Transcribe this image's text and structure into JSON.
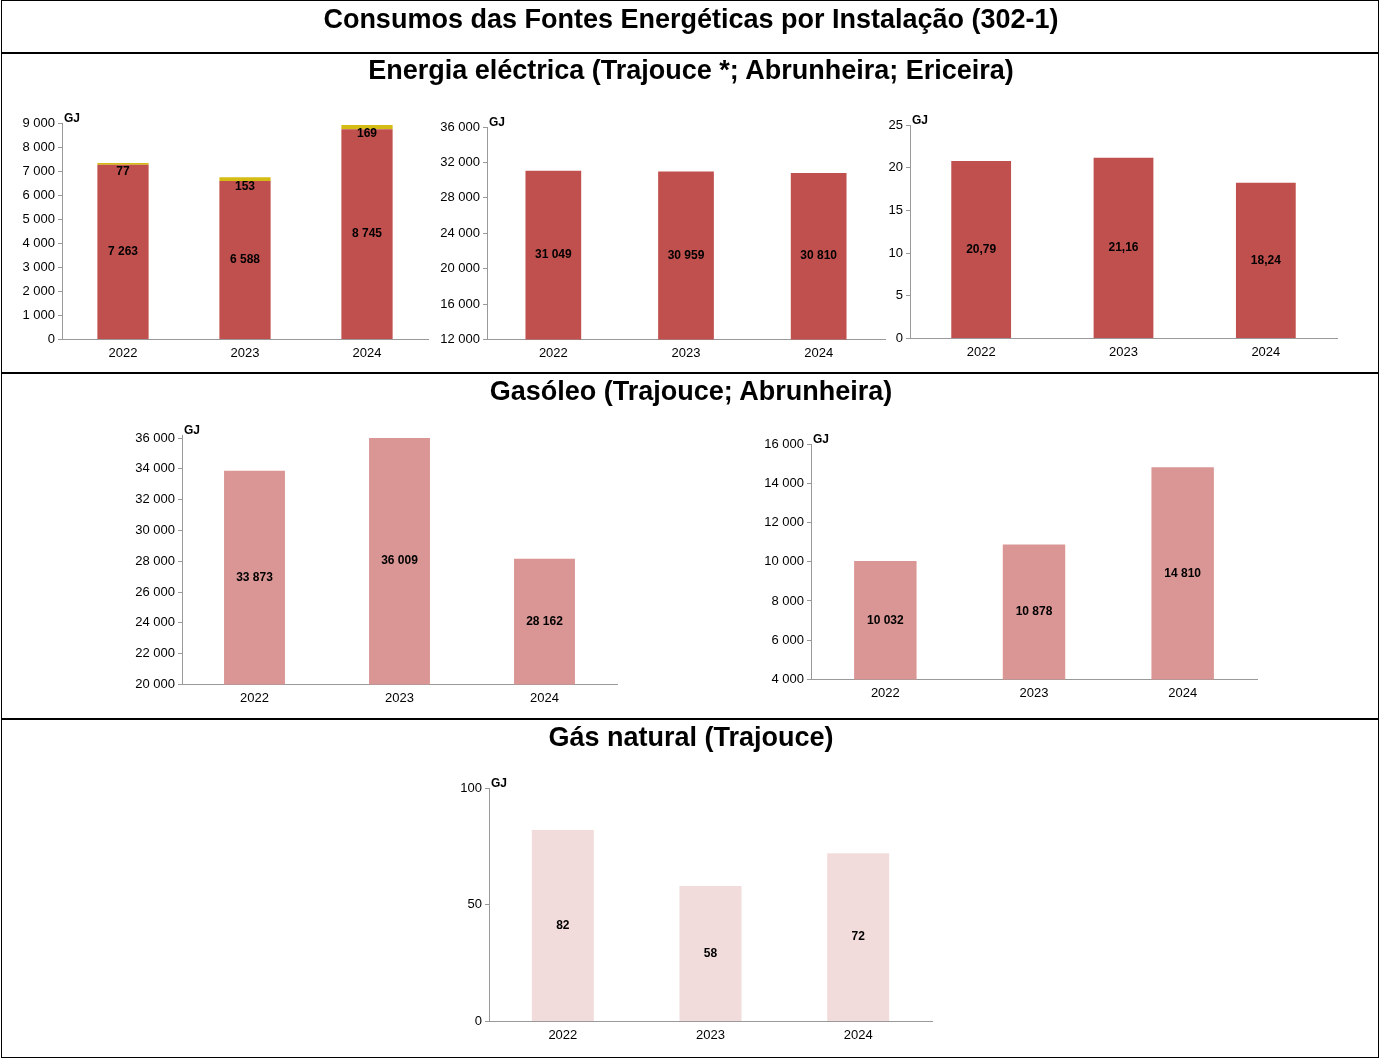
{
  "chart_data": [
    {
      "type": "bar",
      "ylabel": "GJ",
      "categories": [
        "2022",
        "2023",
        "2024"
      ],
      "stacked": true,
      "series": [
        {
          "color": "#c0504d",
          "values": [
            7263,
            6588,
            8745
          ],
          "value_labels": [
            "7 263",
            "6 588",
            "8 745"
          ]
        },
        {
          "color": "#d4bc14",
          "values": [
            77,
            153,
            169
          ],
          "value_labels": [
            "77",
            "153",
            "169"
          ]
        }
      ],
      "ylim": [
        0,
        9000
      ],
      "yticks": [
        {
          "value": 0,
          "label": "0"
        },
        {
          "value": 1000,
          "label": "1 000"
        },
        {
          "value": 2000,
          "label": "2 000"
        },
        {
          "value": 3000,
          "label": "3 000"
        },
        {
          "value": 4000,
          "label": "4 000"
        },
        {
          "value": 5000,
          "label": "5 000"
        },
        {
          "value": 6000,
          "label": "6 000"
        },
        {
          "value": 7000,
          "label": "7 000"
        },
        {
          "value": 8000,
          "label": "8 000"
        },
        {
          "value": 9000,
          "label": "9 000"
        }
      ]
    },
    {
      "type": "bar",
      "title": "Consumos das Fontes Energéticas por Instalação (302-1)",
      "subtitle": "Energia eléctrica (Trajouce *; Abrunheira; Ericeira)",
      "ylabel": "GJ",
      "categories": [
        "2022",
        "2023",
        "2024"
      ],
      "series": [
        {
          "color": "#c0504d",
          "values": [
            31049,
            30959,
            30810
          ],
          "value_labels": [
            "31 049",
            "30 959",
            "30 810"
          ]
        }
      ],
      "ylim": [
        12000,
        36000
      ],
      "yticks": [
        {
          "value": 12000,
          "label": "12 000"
        },
        {
          "value": 16000,
          "label": "16 000"
        },
        {
          "value": 20000,
          "label": "20 000"
        },
        {
          "value": 24000,
          "label": "24 000"
        },
        {
          "value": 28000,
          "label": "28 000"
        },
        {
          "value": 32000,
          "label": "32 000"
        },
        {
          "value": 36000,
          "label": "36 000"
        }
      ]
    },
    {
      "type": "bar",
      "ylabel": "GJ",
      "categories": [
        "2022",
        "2023",
        "2024"
      ],
      "series": [
        {
          "color": "#c0504d",
          "values": [
            20.79,
            21.16,
            18.24
          ],
          "value_labels": [
            "20,79",
            "21,16",
            "18,24"
          ]
        }
      ],
      "ylim": [
        0,
        25
      ],
      "yticks": [
        0,
        5,
        10,
        15,
        20,
        25
      ]
    },
    {
      "type": "bar",
      "title": "Gasóleo (Trajouce; Abrunheira)",
      "ylabel": "GJ",
      "categories": [
        "2022",
        "2023",
        "2024"
      ],
      "series": [
        {
          "color": "#d99694",
          "values": [
            33873,
            36009,
            28162
          ],
          "value_labels": [
            "33 873",
            "36 009",
            "28 162"
          ]
        }
      ],
      "ylim": [
        20000,
        36200
      ],
      "yticks": [
        {
          "value": 20000,
          "label": "20 000"
        },
        {
          "value": 22000,
          "label": "22 000"
        },
        {
          "value": 24000,
          "label": "24 000"
        },
        {
          "value": 26000,
          "label": "26 000"
        },
        {
          "value": 28000,
          "label": "28 000"
        },
        {
          "value": 30000,
          "label": "30 000"
        },
        {
          "value": 32000,
          "label": "32 000"
        },
        {
          "value": 34000,
          "label": "34 000"
        },
        {
          "value": 36000,
          "label": "36 000"
        }
      ]
    },
    {
      "type": "bar",
      "ylabel": "GJ",
      "categories": [
        "2022",
        "2023",
        "2024"
      ],
      "series": [
        {
          "color": "#d99694",
          "values": [
            10032,
            10878,
            14810
          ],
          "value_labels": [
            "10 032",
            "10 878",
            "14 810"
          ]
        }
      ],
      "ylim": [
        4000,
        16000
      ],
      "yticks": [
        {
          "value": 4000,
          "label": "4 000"
        },
        {
          "value": 6000,
          "label": "6 000"
        },
        {
          "value": 8000,
          "label": "8 000"
        },
        {
          "value": 10000,
          "label": "10 000"
        },
        {
          "value": 12000,
          "label": "12 000"
        },
        {
          "value": 14000,
          "label": "14 000"
        },
        {
          "value": 16000,
          "label": "16 000"
        }
      ]
    },
    {
      "type": "bar",
      "title": "Gás natural (Trajouce)",
      "ylabel": "GJ",
      "categories": [
        "2022",
        "2023",
        "2024"
      ],
      "series": [
        {
          "color": "#f2dcdb",
          "values": [
            82,
            58,
            72
          ],
          "value_labels": [
            "82",
            "58",
            "72"
          ]
        }
      ],
      "ylim": [
        0,
        100
      ],
      "yticks": [
        0,
        50,
        100
      ]
    }
  ]
}
